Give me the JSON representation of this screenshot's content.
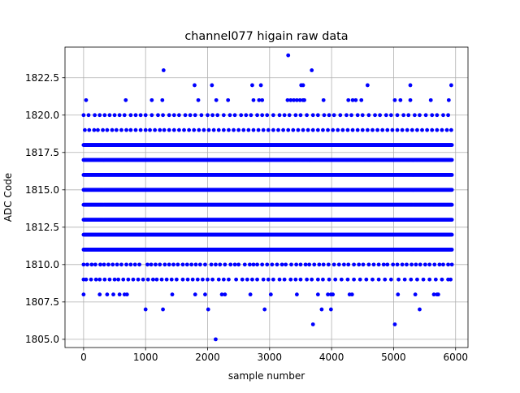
{
  "chart_data": {
    "type": "scatter",
    "title": "channel077 higain raw data",
    "xlabel": "sample number",
    "ylabel": "ADC Code",
    "xlim": [
      -300,
      6200
    ],
    "ylim": [
      1804.45,
      1824.55
    ],
    "xticks": [
      0,
      1000,
      2000,
      3000,
      4000,
      5000,
      6000
    ],
    "yticks": [
      1805.0,
      1807.5,
      1810.0,
      1812.5,
      1815.0,
      1817.5,
      1820.0,
      1822.5
    ],
    "xtick_labels": [
      "0",
      "1000",
      "2000",
      "3000",
      "4000",
      "5000",
      "6000"
    ],
    "ytick_labels": [
      "1805.0",
      "1807.5",
      "1810.0",
      "1812.5",
      "1815.0",
      "1817.5",
      "1820.0",
      "1822.5"
    ],
    "grid": true,
    "marker_color": "#0000ff",
    "x_range": [
      0,
      5950
    ],
    "dense_levels": [
      1811,
      1812,
      1813,
      1814,
      1815,
      1816,
      1817,
      1818
    ],
    "sparse_levels": [
      {
        "y": 1810,
        "x": [
          0,
          60,
          130,
          190,
          270,
          330,
          400,
          470,
          540,
          610,
          690,
          760,
          830,
          900,
          1030,
          1090,
          1160,
          1230,
          1310,
          1380,
          1450,
          1520,
          1600,
          1670,
          1740,
          1810,
          1880,
          1960,
          2060,
          2130,
          2200,
          2280,
          2370,
          2440,
          2500,
          2600,
          2680,
          2740,
          2800,
          2880,
          2960,
          3040,
          3120,
          3200,
          3260,
          3350,
          3430,
          3500,
          3580,
          3640,
          3720,
          3800,
          3870,
          3950,
          4040,
          4120,
          4200,
          4270,
          4360,
          4440,
          4510,
          4600,
          4680,
          4760,
          4840,
          4900,
          4990,
          5060,
          5140,
          5210,
          5290,
          5360,
          5430,
          5510,
          5580,
          5660,
          5740,
          5800,
          5880,
          5940
        ]
      },
      {
        "y": 1809,
        "x": [
          0,
          40,
          120,
          200,
          260,
          340,
          420,
          500,
          560,
          640,
          720,
          800,
          880,
          960,
          1040,
          1120,
          1180,
          1260,
          1340,
          1420,
          1500,
          1600,
          1680,
          1760,
          1840,
          1920,
          2000,
          2080,
          2180,
          2260,
          2340,
          2460,
          2560,
          2640,
          2720,
          2800,
          2900,
          2980,
          3060,
          3160,
          3240,
          3340,
          3420,
          3500,
          3600,
          3680,
          3780,
          3860,
          3960,
          4060,
          4160,
          4260,
          4360,
          4460,
          4560,
          4660,
          4760,
          4860,
          4960,
          5080,
          5180,
          5280,
          5380,
          5480,
          5580,
          5680,
          5780,
          5880,
          5920
        ]
      },
      {
        "y": 1808,
        "x": [
          0,
          260,
          380,
          480,
          580,
          660,
          700,
          1430,
          1800,
          1960,
          2230,
          2280,
          2690,
          3020,
          3440,
          3780,
          3940,
          3990,
          4020,
          4290,
          4330,
          5070,
          5350,
          5650,
          5700,
          5720
        ]
      },
      {
        "y": 1807,
        "x": [
          1000,
          1280,
          2010,
          2920,
          3840,
          3990,
          5420
        ]
      },
      {
        "y": 1806,
        "x": [
          3700,
          5020
        ]
      },
      {
        "y": 1805,
        "x": [
          2130
        ]
      },
      {
        "y": 1819,
        "x": [
          20,
          90,
          170,
          230,
          310,
          380,
          460,
          530,
          610,
          690,
          760,
          840,
          920,
          1000,
          1070,
          1150,
          1230,
          1300,
          1380,
          1460,
          1540,
          1620,
          1700,
          1780,
          1860,
          1940,
          2020,
          2100,
          2180,
          2260,
          2340,
          2420,
          2500,
          2580,
          2660,
          2740,
          2820,
          2900,
          2980,
          3060,
          3140,
          3220,
          3300,
          3380,
          3460,
          3540,
          3620,
          3700,
          3780,
          3860,
          3940,
          4020,
          4100,
          4180,
          4260,
          4340,
          4420,
          4500,
          4580,
          4660,
          4740,
          4820,
          4900,
          4980,
          5060,
          5140,
          5220,
          5300,
          5380,
          5460,
          5540,
          5620,
          5700,
          5780,
          5860,
          5930
        ]
      },
      {
        "y": 1820,
        "x": [
          0,
          80,
          180,
          260,
          340,
          420,
          500,
          580,
          660,
          760,
          840,
          920,
          1000,
          1100,
          1200,
          1280,
          1380,
          1460,
          1540,
          1640,
          1720,
          1800,
          1900,
          2000,
          2080,
          2160,
          2260,
          2360,
          2440,
          2540,
          2620,
          2700,
          2800,
          2880,
          2960,
          3060,
          3160,
          3240,
          3320,
          3420,
          3500,
          3600,
          3700,
          3780,
          3880,
          3960,
          4040,
          4140,
          4240,
          4320,
          4420,
          4500,
          4600,
          4700,
          4780,
          4880,
          4960,
          5060,
          5160,
          5240,
          5340,
          5420,
          5520,
          5620,
          5700,
          5800,
          5880
        ]
      },
      {
        "y": 1821,
        "x": [
          40,
          680,
          1100,
          1270,
          1850,
          2140,
          2330,
          2740,
          2830,
          2880,
          3290,
          3340,
          3390,
          3440,
          3490,
          3540,
          3560,
          3870,
          4270,
          4340,
          4390,
          4480,
          5020,
          5110,
          5270,
          5600,
          5890
        ]
      },
      {
        "y": 1822,
        "x": [
          1790,
          2070,
          2720,
          2860,
          3510,
          3540,
          4580,
          5270,
          5930
        ]
      },
      {
        "y": 1823,
        "x": [
          1290,
          3680
        ]
      },
      {
        "y": 1824,
        "x": [
          3300
        ]
      }
    ]
  }
}
